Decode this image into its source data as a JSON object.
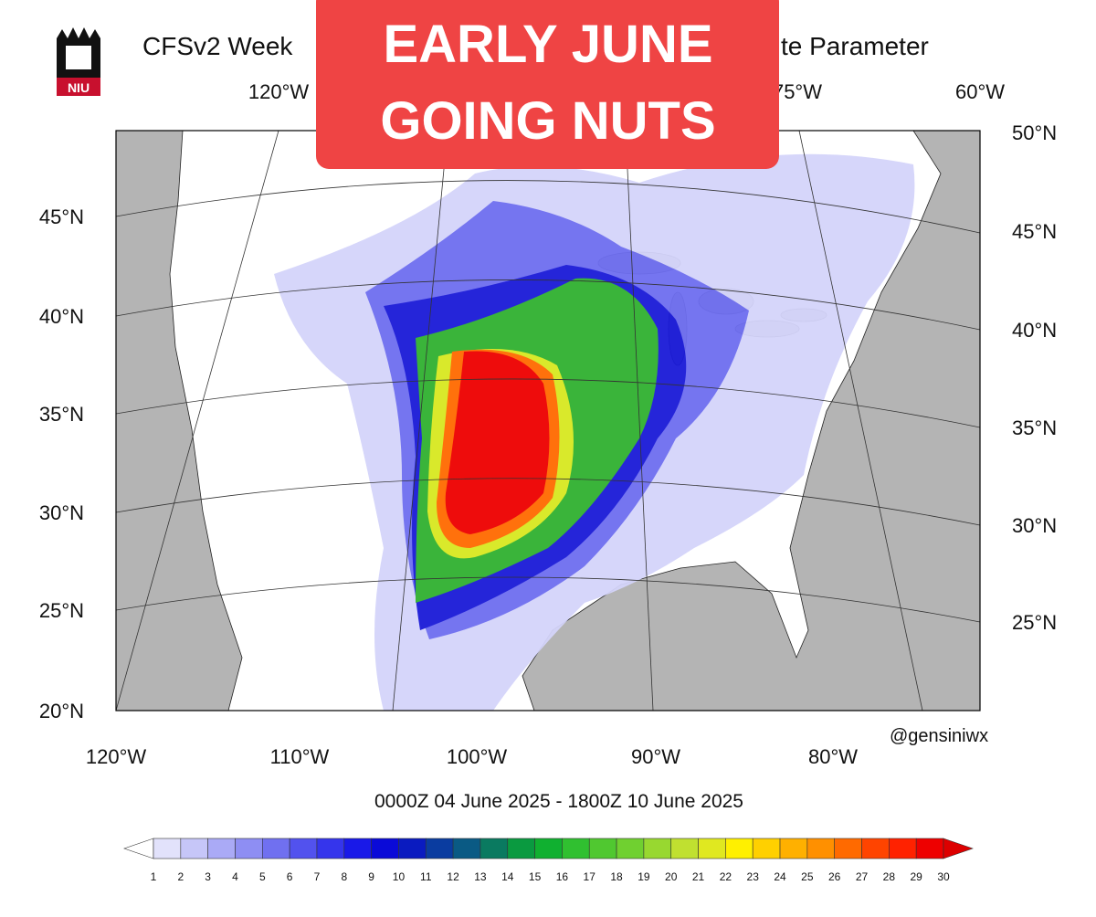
{
  "header": {
    "logo_text": "NIU",
    "title_left": "CFSv2 Week",
    "title_right": "te Parameter",
    "banner_lines": [
      "EARLY JUNE",
      "GOING NUTS"
    ]
  },
  "map": {
    "top_labels": [
      "120°W",
      "75°W",
      "60°W"
    ],
    "bottom_labels": [
      "120°W",
      "110°W",
      "100°W",
      "90°W",
      "80°W"
    ],
    "left_labels": [
      "45°N",
      "40°N",
      "35°N",
      "30°N",
      "25°N",
      "20°N"
    ],
    "right_labels": [
      "50°N",
      "45°N",
      "40°N",
      "35°N",
      "30°N",
      "25°N"
    ],
    "credit": "@gensiniwx",
    "period": "0000Z 04  June  2025  - 1800Z 10  June  2025"
  },
  "colorbar": {
    "labels": [
      1,
      2,
      3,
      4,
      5,
      6,
      7,
      8,
      9,
      10,
      11,
      12,
      13,
      14,
      15,
      16,
      17,
      18,
      19,
      20,
      21,
      22,
      23,
      24,
      25,
      26,
      27,
      28,
      29,
      30
    ],
    "colors": [
      "#ffffff",
      "#e2e2fb",
      "#c6c6f8",
      "#aaaaf6",
      "#8e8ef3",
      "#7070f0",
      "#5252ee",
      "#3535ec",
      "#1919e8",
      "#0a0ad8",
      "#0a1bc0",
      "#0a3ca0",
      "#0a5a84",
      "#0a7a60",
      "#0a9a40",
      "#10b030",
      "#30c030",
      "#50c830",
      "#70d030",
      "#98d830",
      "#c0e030",
      "#e0e820",
      "#fff000",
      "#ffd000",
      "#ffb000",
      "#ff9000",
      "#ff6a00",
      "#ff4400",
      "#ff2200",
      "#ee0000",
      "#dd0000"
    ]
  }
}
